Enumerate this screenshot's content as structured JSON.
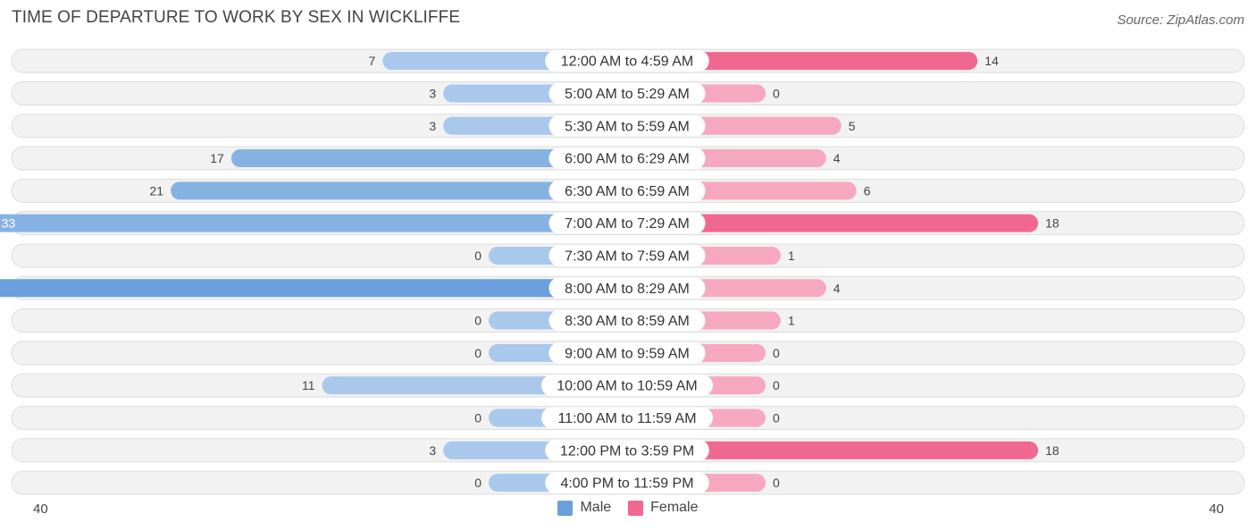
{
  "header": {
    "title": "TIME OF DEPARTURE TO WORK BY SEX IN WICKLIFFE",
    "source": "Source: ZipAtlas.com"
  },
  "colors": {
    "male_dark": "#6a9fdc",
    "male_light": "#a9c8ec",
    "female_dark": "#f06890",
    "female_light": "#f7a8c1",
    "row_bg": "#f2f2f2",
    "row_border": "#dddddd"
  },
  "legend": {
    "male_label": "Male",
    "female_label": "Female"
  },
  "axis": {
    "left_label": "40",
    "right_label": "40"
  },
  "chart_data": {
    "type": "bar",
    "orientation": "horizontal-diverging",
    "title": "TIME OF DEPARTURE TO WORK BY SEX IN WICKLIFFE",
    "xlim": [
      -40,
      40
    ],
    "categories": [
      "12:00 AM to 4:59 AM",
      "5:00 AM to 5:29 AM",
      "5:30 AM to 5:59 AM",
      "6:00 AM to 6:29 AM",
      "6:30 AM to 6:59 AM",
      "7:00 AM to 7:29 AM",
      "7:30 AM to 7:59 AM",
      "8:00 AM to 8:29 AM",
      "8:30 AM to 8:59 AM",
      "9:00 AM to 9:59 AM",
      "10:00 AM to 10:59 AM",
      "11:00 AM to 11:59 AM",
      "12:00 PM to 3:59 PM",
      "4:00 PM to 11:59 PM"
    ],
    "series": [
      {
        "name": "Male",
        "values": [
          7,
          3,
          3,
          17,
          21,
          33,
          0,
          39,
          0,
          0,
          11,
          0,
          3,
          0
        ]
      },
      {
        "name": "Female",
        "values": [
          14,
          0,
          5,
          4,
          6,
          18,
          1,
          4,
          1,
          0,
          0,
          0,
          18,
          0
        ]
      }
    ],
    "legend_position": "bottom-center"
  }
}
